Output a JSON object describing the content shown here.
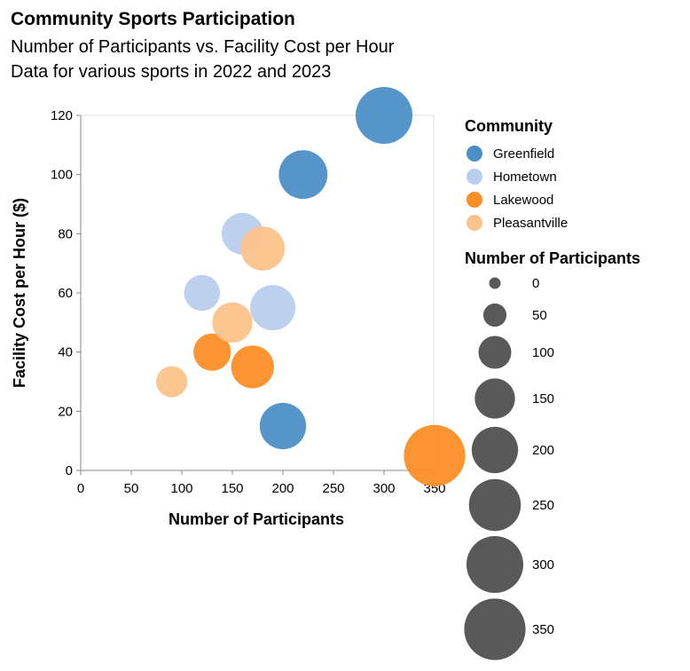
{
  "chart_data": {
    "type": "scatter",
    "title": "Community Sports Participation",
    "subtitle": [
      "Number of Participants vs. Facility Cost per Hour",
      "Data for various sports in 2022 and 2023"
    ],
    "xlabel": "Number of Participants",
    "ylabel": "Facility Cost per Hour ($)",
    "xlim": [
      0,
      350
    ],
    "ylim": [
      0,
      120
    ],
    "x_ticks": [
      0,
      50,
      100,
      150,
      200,
      250,
      300,
      350
    ],
    "y_ticks": [
      0,
      20,
      40,
      60,
      80,
      100,
      120
    ],
    "grid": false,
    "legend_placement": "right",
    "size_encodes": "Number of Participants",
    "color_legend": {
      "title": "Community",
      "entries": [
        {
          "name": "Greenfield",
          "color": "#4c8fc6"
        },
        {
          "name": "Hometown",
          "color": "#b9cdec"
        },
        {
          "name": "Lakewood",
          "color": "#fb8e26"
        },
        {
          "name": "Pleasantville",
          "color": "#fcc38b"
        }
      ]
    },
    "size_legend": {
      "title": "Number of Participants",
      "values": [
        0,
        50,
        100,
        150,
        200,
        250,
        300,
        350
      ]
    },
    "series": [
      {
        "name": "Greenfield",
        "points": [
          {
            "x": 300,
            "y": 120
          },
          {
            "x": 220,
            "y": 100
          },
          {
            "x": 200,
            "y": 15
          }
        ]
      },
      {
        "name": "Hometown",
        "points": [
          {
            "x": 160,
            "y": 80
          },
          {
            "x": 120,
            "y": 60
          },
          {
            "x": 190,
            "y": 55
          }
        ]
      },
      {
        "name": "Lakewood",
        "points": [
          {
            "x": 130,
            "y": 40
          },
          {
            "x": 170,
            "y": 35
          },
          {
            "x": 350,
            "y": 5
          }
        ]
      },
      {
        "name": "Pleasantville",
        "points": [
          {
            "x": 180,
            "y": 75
          },
          {
            "x": 150,
            "y": 50
          },
          {
            "x": 90,
            "y": 30
          }
        ]
      }
    ]
  }
}
